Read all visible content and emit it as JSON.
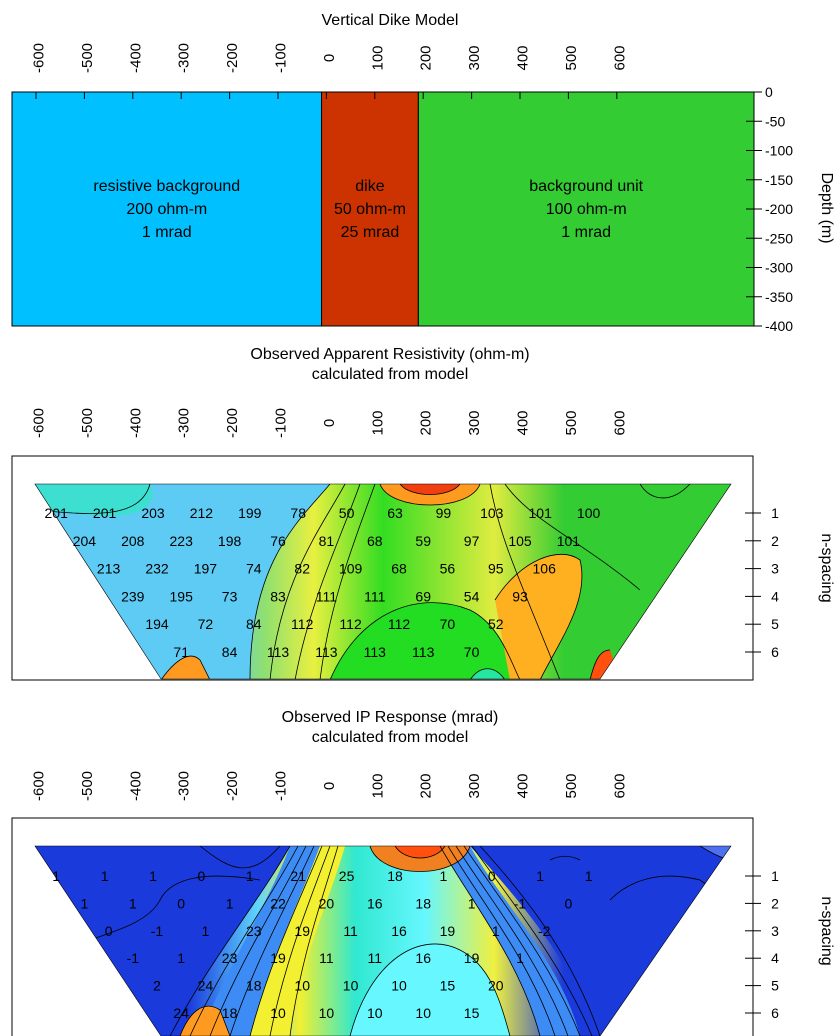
{
  "panels": {
    "model": {
      "title": "Vertical Dike Model",
      "x_ticks": [
        -600,
        -500,
        -400,
        -300,
        -200,
        -100,
        0,
        100,
        200,
        300,
        400,
        500,
        600
      ],
      "x_tick_labels": [
        "-600",
        "-500",
        "-400",
        "-300",
        "-200",
        "-100",
        "0",
        "100",
        "200",
        "300",
        "400",
        "500",
        "600"
      ],
      "depth_ticks": [
        0,
        -50,
        -100,
        -150,
        -200,
        -250,
        -300,
        -350,
        -400
      ],
      "depth_tick_labels": [
        "0",
        "-50",
        "-100",
        "-150",
        "-200",
        "-250",
        "-300",
        "-350",
        "-400"
      ],
      "ylabel": "Depth (m)",
      "units": [
        {
          "name": "resistive background",
          "value1": "200 ohm-m",
          "value2": "1 mrad",
          "x_from": -600,
          "x_to": -10,
          "color": "#00c0ff"
        },
        {
          "name": "dike",
          "value1": "50 ohm-m",
          "value2": "25 mrad",
          "x_from": -10,
          "x_to": 190,
          "color": "#cc3300"
        },
        {
          "name": "background unit",
          "value1": "100 ohm-m",
          "value2": "1 mrad",
          "x_from": 190,
          "x_to": 600,
          "color": "#33cc33"
        }
      ]
    },
    "resistivity": {
      "title_line1": "Observed Apparent Resistivity (ohm-m)",
      "title_line2": "calculated from model",
      "x_tick_labels": [
        "-600",
        "-500",
        "-400",
        "-300",
        "-200",
        "-100",
        "0",
        "100",
        "200",
        "300",
        "400",
        "500",
        "600"
      ],
      "n_tick_labels": [
        "1",
        "2",
        "3",
        "4",
        "5",
        "6"
      ],
      "ylabel": "n-spacing"
    },
    "ip": {
      "title_line1": "Observed IP Response (mrad)",
      "title_line2": "calculated from model",
      "x_tick_labels": [
        "-600",
        "-500",
        "-400",
        "-300",
        "-200",
        "-100",
        "0",
        "100",
        "200",
        "300",
        "400",
        "500",
        "600"
      ],
      "n_tick_labels": [
        "1",
        "2",
        "3",
        "4",
        "5",
        "6"
      ],
      "ylabel": "n-spacing"
    }
  },
  "chart_data": [
    {
      "type": "heatmap",
      "title": "Observed Apparent Resistivity (ohm-m)",
      "subtitle": "calculated from model",
      "xlim": [
        -600,
        600
      ],
      "ylabel": "n-spacing",
      "rows": [
        {
          "n": 1,
          "x": [
            -550,
            -450,
            -350,
            -250,
            -150,
            -50,
            50,
            150,
            250,
            350,
            450,
            550
          ],
          "values": [
            201,
            201,
            203,
            212,
            199,
            78,
            50,
            63,
            99,
            103,
            101,
            100
          ]
        },
        {
          "n": 2,
          "x": [
            -500,
            -400,
            -300,
            -200,
            -100,
            0,
            100,
            200,
            300,
            400,
            500
          ],
          "values": [
            204,
            208,
            223,
            198,
            76,
            81,
            68,
            59,
            97,
            105,
            101
          ]
        },
        {
          "n": 3,
          "x": [
            -450,
            -350,
            -250,
            -150,
            -50,
            50,
            150,
            250,
            350,
            450
          ],
          "values": [
            213,
            232,
            197,
            74,
            82,
            109,
            68,
            56,
            95,
            106
          ]
        },
        {
          "n": 4,
          "x": [
            -400,
            -300,
            -200,
            -100,
            0,
            100,
            200,
            300,
            400
          ],
          "values": [
            239,
            195,
            73,
            83,
            111,
            111,
            69,
            54,
            93
          ]
        },
        {
          "n": 5,
          "x": [
            -350,
            -250,
            -150,
            -50,
            50,
            150,
            250,
            350
          ],
          "values": [
            194,
            72,
            84,
            112,
            112,
            112,
            70,
            52
          ]
        },
        {
          "n": 6,
          "x": [
            -300,
            -200,
            -100,
            0,
            100,
            200,
            300
          ],
          "values": [
            71,
            84,
            113,
            113,
            113,
            113,
            70
          ]
        }
      ]
    },
    {
      "type": "heatmap",
      "title": "Observed IP Response (mrad)",
      "subtitle": "calculated from model",
      "xlim": [
        -600,
        600
      ],
      "ylabel": "n-spacing",
      "rows": [
        {
          "n": 1,
          "x": [
            -550,
            -450,
            -350,
            -250,
            -150,
            -50,
            50,
            150,
            250,
            350,
            450,
            550
          ],
          "values": [
            1,
            1,
            1,
            0,
            1,
            21,
            25,
            18,
            1,
            0,
            1,
            1
          ]
        },
        {
          "n": 2,
          "x": [
            -500,
            -400,
            -300,
            -200,
            -100,
            0,
            100,
            200,
            300,
            400,
            500
          ],
          "values": [
            1,
            1,
            0,
            1,
            22,
            20,
            16,
            18,
            1,
            -1,
            0
          ]
        },
        {
          "n": 3,
          "x": [
            -450,
            -350,
            -250,
            -150,
            -50,
            50,
            150,
            250,
            350,
            450
          ],
          "values": [
            0,
            -1,
            1,
            23,
            19,
            11,
            16,
            19,
            1,
            -2
          ]
        },
        {
          "n": 4,
          "x": [
            -400,
            -300,
            -200,
            -100,
            0,
            100,
            200,
            300,
            400
          ],
          "values": [
            -1,
            1,
            23,
            19,
            11,
            11,
            16,
            19,
            1
          ]
        },
        {
          "n": 5,
          "x": [
            -350,
            -250,
            -150,
            -50,
            50,
            150,
            250,
            350
          ],
          "values": [
            2,
            24,
            18,
            10,
            10,
            10,
            15,
            20
          ]
        },
        {
          "n": 6,
          "x": [
            -300,
            -200,
            -100,
            0,
            100,
            200,
            300
          ],
          "values": [
            24,
            18,
            10,
            10,
            10,
            10,
            15
          ]
        }
      ]
    }
  ]
}
